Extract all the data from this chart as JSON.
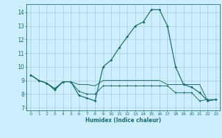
{
  "x": [
    0,
    1,
    2,
    3,
    4,
    5,
    6,
    7,
    8,
    9,
    10,
    11,
    12,
    13,
    14,
    15,
    16,
    17,
    18,
    19,
    20,
    21,
    22,
    23
  ],
  "line1": [
    9.4,
    9.0,
    8.8,
    8.3,
    8.9,
    8.9,
    7.9,
    7.7,
    7.5,
    10.0,
    10.5,
    11.4,
    12.2,
    13.0,
    13.3,
    14.2,
    14.2,
    13.0,
    10.0,
    8.7,
    8.5,
    8.1,
    7.5,
    7.6
  ],
  "line2": [
    9.4,
    9.0,
    8.8,
    8.4,
    8.9,
    8.9,
    8.2,
    8.0,
    8.0,
    8.6,
    8.6,
    8.6,
    8.6,
    8.6,
    8.6,
    8.6,
    8.6,
    8.6,
    8.1,
    8.1,
    8.1,
    7.5,
    7.6,
    7.6
  ],
  "line3": [
    9.4,
    9.0,
    8.8,
    8.4,
    8.9,
    8.9,
    8.7,
    8.7,
    8.6,
    9.0,
    9.0,
    9.0,
    9.0,
    9.0,
    9.0,
    9.0,
    9.0,
    8.7,
    8.7,
    8.7,
    8.7,
    8.7,
    7.5,
    7.6
  ],
  "color": "#1a6b6b",
  "bg_color": "#cceeff",
  "grid_color": "#aacccc",
  "xlabel": "Humidex (Indice chaleur)",
  "ylim": [
    6.8,
    14.6
  ],
  "xlim": [
    -0.5,
    23.5
  ],
  "yticks": [
    7,
    8,
    9,
    10,
    11,
    12,
    13,
    14
  ],
  "xticks": [
    0,
    1,
    2,
    3,
    4,
    5,
    6,
    7,
    8,
    9,
    10,
    11,
    12,
    13,
    14,
    15,
    16,
    17,
    18,
    19,
    20,
    21,
    22,
    23
  ]
}
